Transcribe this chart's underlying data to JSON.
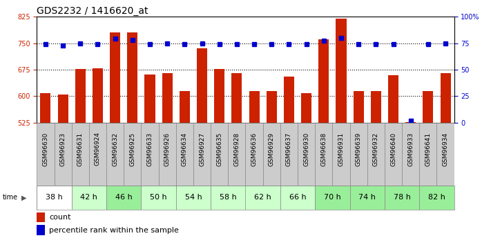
{
  "title": "GDS2232 / 1416620_at",
  "samples": [
    "GSM96630",
    "GSM96923",
    "GSM96631",
    "GSM96924",
    "GSM96632",
    "GSM96925",
    "GSM96633",
    "GSM96926",
    "GSM96634",
    "GSM96927",
    "GSM96635",
    "GSM96928",
    "GSM96636",
    "GSM96929",
    "GSM96637",
    "GSM96930",
    "GSM96638",
    "GSM96931",
    "GSM96639",
    "GSM96932",
    "GSM96640",
    "GSM96933",
    "GSM96641",
    "GSM96934"
  ],
  "counts": [
    609,
    604,
    676,
    679,
    780,
    780,
    661,
    665,
    614,
    735,
    676,
    665,
    614,
    614,
    656,
    609,
    760,
    820,
    614,
    614,
    660,
    527,
    614,
    665
  ],
  "percentiles": [
    74,
    73,
    75,
    74,
    79,
    78,
    74,
    75,
    74,
    75,
    74,
    74,
    74,
    74,
    74,
    74,
    77,
    80,
    74,
    74,
    74,
    2,
    74,
    75
  ],
  "time_groups": [
    {
      "label": "38 h",
      "start": 0,
      "end": 2,
      "color": "#ffffff"
    },
    {
      "label": "42 h",
      "start": 2,
      "end": 4,
      "color": "#ccffcc"
    },
    {
      "label": "46 h",
      "start": 4,
      "end": 6,
      "color": "#99ee99"
    },
    {
      "label": "50 h",
      "start": 6,
      "end": 8,
      "color": "#ccffcc"
    },
    {
      "label": "54 h",
      "start": 8,
      "end": 10,
      "color": "#ccffcc"
    },
    {
      "label": "58 h",
      "start": 10,
      "end": 12,
      "color": "#ccffcc"
    },
    {
      "label": "62 h",
      "start": 12,
      "end": 14,
      "color": "#ccffcc"
    },
    {
      "label": "66 h",
      "start": 14,
      "end": 16,
      "color": "#ccffcc"
    },
    {
      "label": "70 h",
      "start": 16,
      "end": 18,
      "color": "#99ee99"
    },
    {
      "label": "74 h",
      "start": 18,
      "end": 20,
      "color": "#99ee99"
    },
    {
      "label": "78 h",
      "start": 20,
      "end": 22,
      "color": "#99ee99"
    },
    {
      "label": "82 h",
      "start": 22,
      "end": 24,
      "color": "#99ee99"
    }
  ],
  "ylim_left": [
    525,
    825
  ],
  "ylim_right": [
    0,
    100
  ],
  "yticks_left": [
    525,
    600,
    675,
    750,
    825
  ],
  "yticks_right": [
    0,
    25,
    50,
    75,
    100
  ],
  "ytick_labels_right": [
    "0",
    "25",
    "50",
    "75",
    "100%"
  ],
  "bar_color": "#cc2200",
  "dot_color": "#0000cc",
  "bar_width": 0.6,
  "background_color": "#ffffff",
  "plot_bg": "#ffffff",
  "label_bg": "#cccccc",
  "grid_color": "#000000",
  "title_fontsize": 10,
  "tick_fontsize": 7,
  "sample_fontsize": 6.5,
  "time_fontsize": 8,
  "legend_fontsize": 8
}
